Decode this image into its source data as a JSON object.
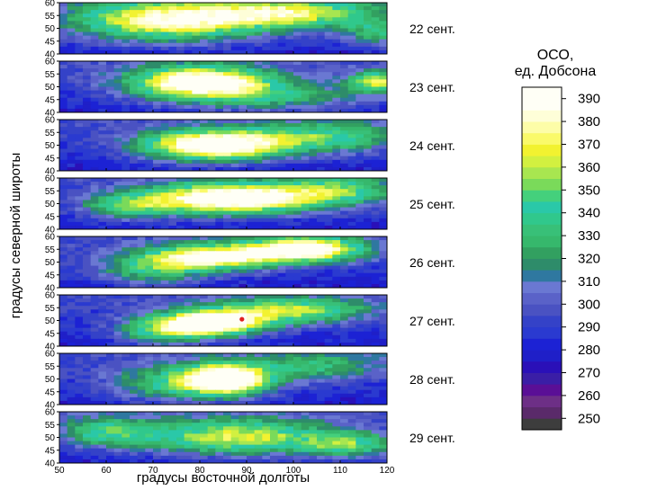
{
  "chart_data": {
    "type": "heatmap",
    "title": "",
    "xlabel": "градусы восточной долготы",
    "ylabel": "градусы северной широты",
    "x_range": [
      50,
      120
    ],
    "x_ticks": [
      "50",
      "60",
      "70",
      "80",
      "90",
      "100",
      "110",
      "120"
    ],
    "y_range": [
      40,
      60
    ],
    "y_ticks": [
      "40",
      "45",
      "50",
      "55",
      "60"
    ],
    "panels": [
      {
        "label": "22 сент.",
        "blobs": [
          {
            "lon": 73,
            "lat": 53,
            "slon": 20,
            "slat": 8,
            "amp": 95
          },
          {
            "lon": 100,
            "lat": 56,
            "slon": 18,
            "slat": 6,
            "amp": 75
          },
          {
            "lon": 118,
            "lat": 48,
            "slon": 7,
            "slat": 5,
            "amp": 45
          }
        ]
      },
      {
        "label": "23 сент.",
        "blobs": [
          {
            "lon": 80,
            "lat": 52,
            "slon": 15,
            "slat": 6,
            "amp": 115
          },
          {
            "lon": 118,
            "lat": 52,
            "slon": 6,
            "slat": 4,
            "amp": 75
          },
          {
            "lon": 95,
            "lat": 46,
            "slon": 22,
            "slat": 6,
            "amp": 45
          }
        ]
      },
      {
        "label": "24 сент.",
        "blobs": [
          {
            "lon": 83,
            "lat": 50,
            "slon": 15,
            "slat": 6,
            "amp": 125
          },
          {
            "lon": 107,
            "lat": 53,
            "slon": 15,
            "slat": 6,
            "amp": 55
          }
        ]
      },
      {
        "label": "25 сент.",
        "blobs": [
          {
            "lon": 87,
            "lat": 52,
            "slon": 17,
            "slat": 6,
            "amp": 125
          },
          {
            "lon": 65,
            "lat": 49,
            "slon": 10,
            "slat": 5,
            "amp": 55
          },
          {
            "lon": 110,
            "lat": 55,
            "slon": 12,
            "slat": 6,
            "amp": 55
          }
        ]
      },
      {
        "label": "26 сент.",
        "blobs": [
          {
            "lon": 83,
            "lat": 52,
            "slon": 14,
            "slat": 5,
            "amp": 100
          },
          {
            "lon": 103,
            "lat": 55,
            "slon": 12,
            "slat": 5,
            "amp": 110
          },
          {
            "lon": 70,
            "lat": 47,
            "slon": 12,
            "slat": 6,
            "amp": 50
          }
        ]
      },
      {
        "label": "27 сент.",
        "blobs": [
          {
            "lon": 82,
            "lat": 49,
            "slon": 12,
            "slat": 5,
            "amp": 125
          },
          {
            "lon": 100,
            "lat": 54,
            "slon": 16,
            "slat": 5,
            "amp": 70
          },
          {
            "lon": 72,
            "lat": 45,
            "slon": 10,
            "slat": 5,
            "amp": 45
          }
        ]
      },
      {
        "label": "28 сент.",
        "blobs": [
          {
            "lon": 86,
            "lat": 50,
            "slon": 9,
            "slat": 6,
            "amp": 115
          },
          {
            "lon": 75,
            "lat": 48,
            "slon": 14,
            "slat": 7,
            "amp": 55
          },
          {
            "lon": 105,
            "lat": 55,
            "slon": 14,
            "slat": 6,
            "amp": 40
          }
        ]
      },
      {
        "label": "29 сент.",
        "blobs": [
          {
            "lon": 88,
            "lat": 50,
            "slon": 20,
            "slat": 7,
            "amp": 80
          },
          {
            "lon": 60,
            "lat": 52,
            "slon": 10,
            "slat": 6,
            "amp": 50
          },
          {
            "lon": 112,
            "lat": 47,
            "slon": 10,
            "slat": 5,
            "amp": 55
          }
        ]
      }
    ],
    "legend": {
      "title_line1": "ОСО,",
      "title_line2": "ед. Добсона",
      "labels": [
        "390",
        "380",
        "370",
        "360",
        "350",
        "340",
        "330",
        "320",
        "310",
        "300",
        "290",
        "280",
        "270",
        "260",
        "250"
      ],
      "bands": [
        {
          "value": 245,
          "color": "#3d3d3d"
        },
        {
          "value": 250,
          "color": "#5a2a6a"
        },
        {
          "value": 255,
          "color": "#6d2f86"
        },
        {
          "value": 260,
          "color": "#5a0f96"
        },
        {
          "value": 265,
          "color": "#3a1ea6"
        },
        {
          "value": 270,
          "color": "#2a10b8"
        },
        {
          "value": 275,
          "color": "#1f1fc8"
        },
        {
          "value": 280,
          "color": "#1c22d4"
        },
        {
          "value": 285,
          "color": "#2a3ad0"
        },
        {
          "value": 290,
          "color": "#3442c8"
        },
        {
          "value": 295,
          "color": "#4a52c2"
        },
        {
          "value": 300,
          "color": "#5a62c8"
        },
        {
          "value": 305,
          "color": "#6a78d2"
        },
        {
          "value": 310,
          "color": "#2f78a0"
        },
        {
          "value": 315,
          "color": "#2e8c6a"
        },
        {
          "value": 320,
          "color": "#32a060"
        },
        {
          "value": 325,
          "color": "#36b86c"
        },
        {
          "value": 330,
          "color": "#38c078"
        },
        {
          "value": 335,
          "color": "#30c88c"
        },
        {
          "value": 340,
          "color": "#2ac8a8"
        },
        {
          "value": 345,
          "color": "#44d07c"
        },
        {
          "value": 350,
          "color": "#7ada5a"
        },
        {
          "value": 355,
          "color": "#a8e650"
        },
        {
          "value": 360,
          "color": "#d2f040"
        },
        {
          "value": 365,
          "color": "#f2f230"
        },
        {
          "value": 370,
          "color": "#fafa6a"
        },
        {
          "value": 375,
          "color": "#fdfda8"
        },
        {
          "value": 380,
          "color": "#fefed8"
        },
        {
          "value": 385,
          "color": "#fffff6"
        }
      ]
    },
    "marker": {
      "panel": 5,
      "lon": 89,
      "lat": 50.5,
      "color": "#e02020"
    }
  }
}
